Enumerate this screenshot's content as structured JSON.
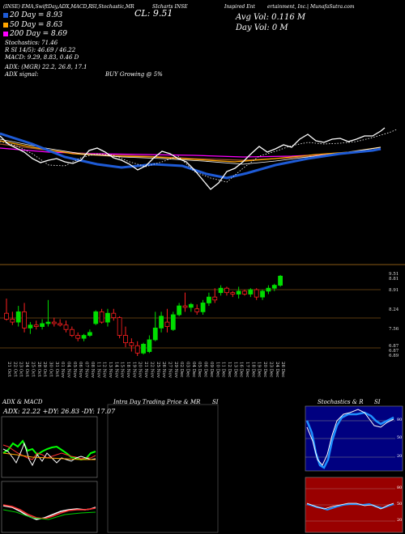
{
  "header": {
    "title_left": "(INSE) EMA,SwiftDay,ADX,MACD,R",
    "title_mid": "SI,Stochastic,MR",
    "title_mid2": "SIcharts INSE",
    "title_right": "Inspired Ent",
    "title_right2": "ertainment, Inc.| MunafaSutra.com",
    "close_label": "CL: 9.51",
    "avg_vol": "Avg Vol: 0.116  M",
    "day_vol": "Day Vol: 0   M"
  },
  "legend": [
    {
      "label": "20  Day = 8.93",
      "color": "#1e5bd6"
    },
    {
      "label": "50  Day = 8.63",
      "color": "#ffa500"
    },
    {
      "label": "200  Day = 8.69",
      "color": "#ff00ff"
    }
  ],
  "indicators": {
    "stochastic": "Stochastics: 71.46",
    "rsi": "R                SI 14/5): 46.69 / 46.22",
    "macd": "MACD: 9.29, 8.83, 0.46  D",
    "adx": "ADX:                   (MGR) 22.2, 26.8, 17.1",
    "adx_signal_label": "ADX  signal:",
    "adx_signal_value": "BUY Growing @ 5%"
  },
  "chart_data": {
    "type": "candlestick",
    "price_labels": [
      "9.51",
      "8.81",
      "8.91",
      "8.24",
      "7.56",
      "6.87",
      "6.87",
      "6.89"
    ],
    "dates": [
      "21 Oct",
      "22 Oct",
      "23 Oct",
      "24 Oct",
      "25 Oct",
      "28 Oct",
      "29 Oct",
      "30 Oct",
      "31 Oct",
      "01 Nov",
      "04 Nov",
      "05 Nov",
      "06 Nov",
      "07 Nov",
      "08 Nov",
      "11 Nov",
      "12 Nov",
      "13 Nov",
      "14 Nov",
      "15 Nov",
      "18 Nov",
      "19 Nov",
      "20 Nov",
      "21 Nov",
      "22 Nov",
      "25 Nov",
      "26 Nov",
      "27 Nov",
      "29 Nov",
      "02 Dec",
      "03 Dec",
      "04 Dec",
      "05 Dec",
      "06 Dec",
      "09 Dec",
      "10 Dec",
      "11 Dec",
      "12 Dec",
      "13 Dec",
      "16 Dec",
      "17 Dec",
      "18 Dec",
      "19 Dec",
      "20 Dec",
      "23 Dec",
      "24 Dec",
      "26 Dec"
    ],
    "candles": [
      {
        "o": 8.25,
        "h": 8.75,
        "l": 8.0,
        "c": 8.05
      },
      {
        "o": 8.05,
        "h": 8.3,
        "l": 7.85,
        "c": 7.95
      },
      {
        "o": 7.95,
        "h": 8.5,
        "l": 7.8,
        "c": 8.3
      },
      {
        "o": 8.3,
        "h": 8.6,
        "l": 7.6,
        "c": 7.75
      },
      {
        "o": 7.75,
        "h": 7.95,
        "l": 7.55,
        "c": 7.85
      },
      {
        "o": 7.85,
        "h": 8.0,
        "l": 7.7,
        "c": 7.8
      },
      {
        "o": 7.8,
        "h": 8.05,
        "l": 7.7,
        "c": 7.9
      },
      {
        "o": 7.9,
        "h": 8.7,
        "l": 7.8,
        "c": 7.95
      },
      {
        "o": 7.95,
        "h": 8.1,
        "l": 7.8,
        "c": 7.9
      },
      {
        "o": 7.9,
        "h": 8.05,
        "l": 7.8,
        "c": 7.85
      },
      {
        "o": 7.85,
        "h": 8.0,
        "l": 7.6,
        "c": 7.7
      },
      {
        "o": 7.7,
        "h": 7.8,
        "l": 7.45,
        "c": 7.5
      },
      {
        "o": 7.5,
        "h": 7.6,
        "l": 7.3,
        "c": 7.4
      },
      {
        "o": 7.4,
        "h": 7.55,
        "l": 7.3,
        "c": 7.5
      },
      {
        "o": 7.5,
        "h": 7.7,
        "l": 7.45,
        "c": 7.6
      },
      {
        "o": 7.9,
        "h": 8.35,
        "l": 7.85,
        "c": 8.3
      },
      {
        "o": 8.3,
        "h": 8.4,
        "l": 7.9,
        "c": 7.95
      },
      {
        "o": 7.95,
        "h": 8.4,
        "l": 7.8,
        "c": 8.25
      },
      {
        "o": 8.25,
        "h": 8.4,
        "l": 8.0,
        "c": 8.1
      },
      {
        "o": 8.1,
        "h": 8.15,
        "l": 7.4,
        "c": 7.5
      },
      {
        "o": 7.5,
        "h": 7.8,
        "l": 7.1,
        "c": 7.25
      },
      {
        "o": 7.25,
        "h": 7.4,
        "l": 6.95,
        "c": 7.15
      },
      {
        "o": 7.15,
        "h": 7.3,
        "l": 6.8,
        "c": 6.9
      },
      {
        "o": 6.9,
        "h": 7.25,
        "l": 6.85,
        "c": 7.2
      },
      {
        "o": 6.95,
        "h": 7.5,
        "l": 6.9,
        "c": 7.35
      },
      {
        "o": 7.35,
        "h": 8.3,
        "l": 7.3,
        "c": 7.75
      },
      {
        "o": 7.75,
        "h": 8.3,
        "l": 7.6,
        "c": 8.15
      },
      {
        "o": 7.95,
        "h": 8.4,
        "l": 7.6,
        "c": 7.8
      },
      {
        "o": 7.7,
        "h": 8.3,
        "l": 7.65,
        "c": 8.2
      },
      {
        "o": 8.2,
        "h": 8.6,
        "l": 8.15,
        "c": 8.5
      },
      {
        "o": 8.5,
        "h": 8.95,
        "l": 8.3,
        "c": 8.45
      },
      {
        "o": 8.45,
        "h": 8.6,
        "l": 8.3,
        "c": 8.55
      },
      {
        "o": 8.4,
        "h": 8.55,
        "l": 8.2,
        "c": 8.3
      },
      {
        "o": 8.3,
        "h": 8.7,
        "l": 8.2,
        "c": 8.6
      },
      {
        "o": 8.6,
        "h": 8.95,
        "l": 8.5,
        "c": 8.8
      },
      {
        "o": 8.8,
        "h": 9.1,
        "l": 8.6,
        "c": 8.7
      },
      {
        "o": 8.95,
        "h": 9.2,
        "l": 8.85,
        "c": 9.1
      },
      {
        "o": 9.1,
        "h": 9.15,
        "l": 8.85,
        "c": 8.95
      },
      {
        "o": 8.95,
        "h": 9.0,
        "l": 8.8,
        "c": 8.9
      },
      {
        "o": 8.9,
        "h": 9.15,
        "l": 8.75,
        "c": 9.0
      },
      {
        "o": 9.0,
        "h": 9.05,
        "l": 8.85,
        "c": 8.9
      },
      {
        "o": 8.9,
        "h": 9.1,
        "l": 8.8,
        "c": 9.05
      },
      {
        "o": 9.05,
        "h": 9.1,
        "l": 8.7,
        "c": 8.8
      },
      {
        "o": 8.8,
        "h": 9.05,
        "l": 8.7,
        "c": 9.0
      },
      {
        "o": 9.0,
        "h": 9.2,
        "l": 8.9,
        "c": 9.1
      },
      {
        "o": 9.1,
        "h": 9.25,
        "l": 9.0,
        "c": 9.2
      },
      {
        "o": 9.2,
        "h": 9.55,
        "l": 9.15,
        "c": 9.51
      }
    ],
    "ylim": [
      6.8,
      9.6
    ]
  },
  "panels": {
    "adx_title": "ADX  & MACD",
    "adx_values": "ADX: 22.22  +DY: 26.83  -DY: 17.07",
    "intraday_title": "Intra  Day Trading Price  & MR",
    "intraday_si": "SI",
    "stoch_title": "Stochastics & R",
    "stoch_si": "SI",
    "stoch_levels": [
      "80",
      "50",
      "20"
    ],
    "rsi_levels": [
      "80",
      "50",
      "20"
    ]
  },
  "colors": {
    "ema20": "#1e5bd6",
    "ema50": "#ffa500",
    "ema200": "#ff00ff",
    "up": "#00dd00",
    "down": "#ff2020",
    "stoch_bg": "#000080",
    "rsi_bg": "#990000",
    "grid": "#8a5a14"
  }
}
